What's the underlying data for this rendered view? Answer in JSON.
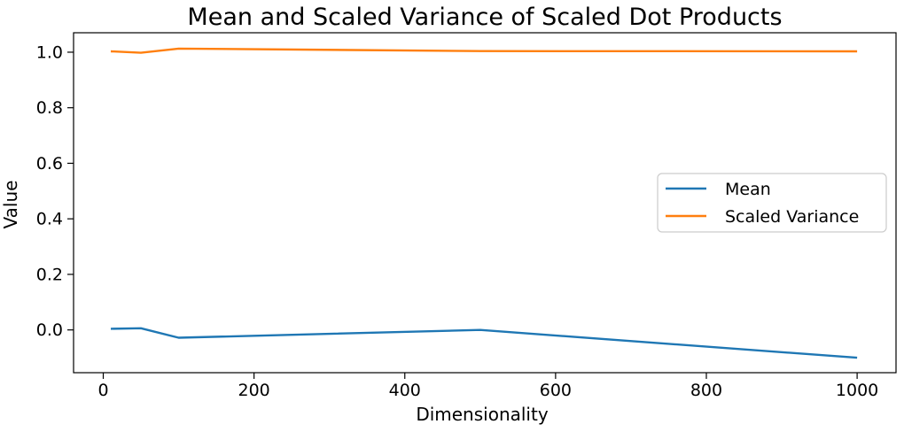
{
  "chart_data": {
    "type": "line",
    "title": "Mean and Scaled Variance of Scaled Dot Products",
    "xlabel": "Dimensionality",
    "ylabel": "Value",
    "x": [
      10,
      50,
      100,
      500,
      1000
    ],
    "series": [
      {
        "name": "Mean",
        "color": "#1f77b4",
        "values": [
          0.004,
          0.006,
          -0.028,
          0.0,
          -0.1
        ]
      },
      {
        "name": "Scaled Variance",
        "color": "#ff7f0e",
        "values": [
          1.003,
          0.998,
          1.013,
          1.004,
          1.003
        ]
      }
    ],
    "x_ticks": [
      {
        "value": 0,
        "label": "0"
      },
      {
        "value": 200,
        "label": "200"
      },
      {
        "value": 400,
        "label": "400"
      },
      {
        "value": 600,
        "label": "600"
      },
      {
        "value": 800,
        "label": "800"
      },
      {
        "value": 1000,
        "label": "1000"
      }
    ],
    "y_ticks": [
      {
        "value": 0.0,
        "label": "0.0"
      },
      {
        "value": 0.2,
        "label": "0.2"
      },
      {
        "value": 0.4,
        "label": "0.4"
      },
      {
        "value": 0.6,
        "label": "0.6"
      },
      {
        "value": 0.8,
        "label": "0.8"
      },
      {
        "value": 1.0,
        "label": "1.0"
      }
    ],
    "xlim": [
      -39.4,
      1051.6
    ],
    "ylim": [
      -0.154,
      1.07
    ],
    "grid": false,
    "legend_position": "center right",
    "background_color": "#ffffff",
    "spine_color": "#000000"
  }
}
